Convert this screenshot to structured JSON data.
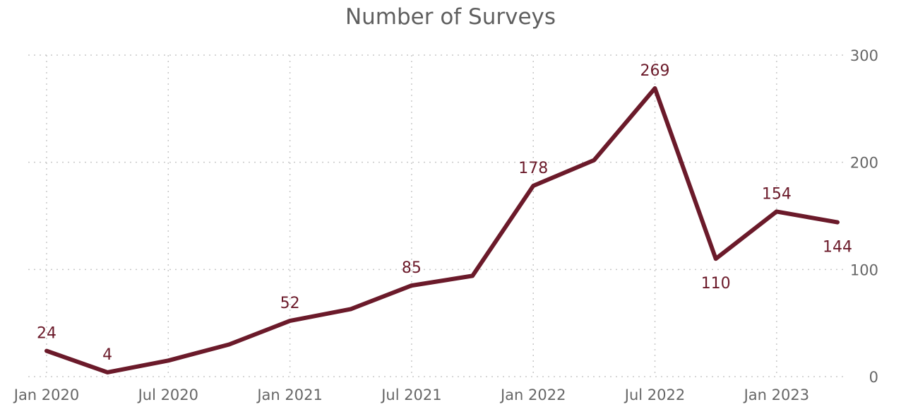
{
  "chart_data": {
    "type": "line",
    "title": "Number of Surveys",
    "xlabel": "",
    "ylabel": "",
    "x": [
      "2020-01",
      "2020-04",
      "2020-07",
      "2020-10",
      "2021-01",
      "2021-04",
      "2021-07",
      "2021-10",
      "2022-01",
      "2022-04",
      "2022-07",
      "2022-10",
      "2023-01",
      "2023-04"
    ],
    "series": [
      {
        "values": [
          24,
          4,
          15,
          30,
          52,
          63,
          85,
          94,
          178,
          202,
          269,
          110,
          154,
          144
        ],
        "color": "#6b1a2a"
      }
    ],
    "data_labels": {
      "2020-01": "24",
      "2020-04": "4",
      "2021-01": "52",
      "2021-07": "85",
      "2022-01": "178",
      "2022-07": "269",
      "2022-10": "110",
      "2023-01": "154",
      "2023-04": "144"
    },
    "x_ticks": [
      {
        "x": "2020-01",
        "label": "Jan 2020"
      },
      {
        "x": "2020-07",
        "label": "Jul 2020"
      },
      {
        "x": "2021-01",
        "label": "Jan 2021"
      },
      {
        "x": "2021-07",
        "label": "Jul 2021"
      },
      {
        "x": "2022-01",
        "label": "Jan 2022"
      },
      {
        "x": "2022-07",
        "label": "Jul 2022"
      },
      {
        "x": "2023-01",
        "label": "Jan 2023"
      }
    ],
    "y_ticks": [
      0,
      100,
      200,
      300
    ],
    "ylim": [
      0,
      300
    ],
    "y_axis_position": "right",
    "grid": true,
    "legend": "none"
  }
}
